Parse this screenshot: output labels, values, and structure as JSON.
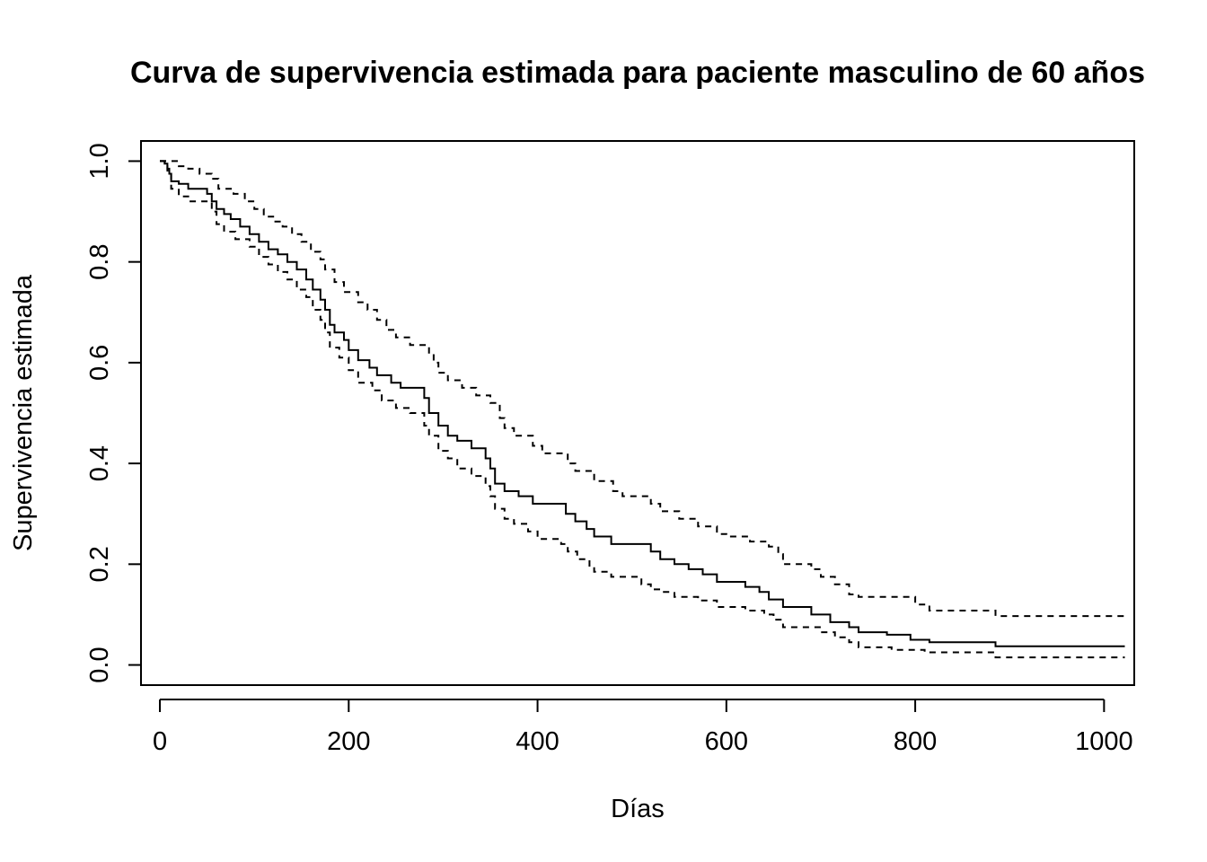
{
  "chart_data": {
    "type": "line",
    "title": "Curva de supervivencia estimada para paciente masculino de 60 años",
    "xlabel": "Días",
    "ylabel": "Supervivencia estimada",
    "xlim": [
      -20,
      1032
    ],
    "ylim": [
      -0.04,
      1.04
    ],
    "x_ticks": [
      0,
      200,
      400,
      600,
      800,
      1000
    ],
    "y_ticks": [
      0.0,
      0.2,
      0.4,
      0.6,
      0.8,
      1.0
    ],
    "x_tick_labels": [
      "0",
      "200",
      "400",
      "600",
      "800",
      "1000"
    ],
    "y_tick_labels": [
      "0.0",
      "0.2",
      "0.4",
      "0.6",
      "0.8",
      "1.0"
    ],
    "grid": false,
    "legend": "none",
    "step": true,
    "series": [
      {
        "style": "solid",
        "color": "#000000",
        "points": [
          [
            0,
            1.0
          ],
          [
            5,
            0.995
          ],
          [
            8,
            0.985
          ],
          [
            10,
            0.975
          ],
          [
            12,
            0.96
          ],
          [
            20,
            0.955
          ],
          [
            30,
            0.945
          ],
          [
            50,
            0.935
          ],
          [
            55,
            0.92
          ],
          [
            60,
            0.905
          ],
          [
            68,
            0.895
          ],
          [
            75,
            0.885
          ],
          [
            85,
            0.87
          ],
          [
            95,
            0.855
          ],
          [
            105,
            0.84
          ],
          [
            115,
            0.825
          ],
          [
            125,
            0.815
          ],
          [
            135,
            0.8
          ],
          [
            145,
            0.785
          ],
          [
            155,
            0.765
          ],
          [
            162,
            0.745
          ],
          [
            170,
            0.725
          ],
          [
            175,
            0.705
          ],
          [
            180,
            0.675
          ],
          [
            185,
            0.66
          ],
          [
            195,
            0.645
          ],
          [
            200,
            0.625
          ],
          [
            210,
            0.605
          ],
          [
            222,
            0.59
          ],
          [
            230,
            0.575
          ],
          [
            245,
            0.56
          ],
          [
            255,
            0.55
          ],
          [
            280,
            0.53
          ],
          [
            285,
            0.5
          ],
          [
            295,
            0.475
          ],
          [
            305,
            0.455
          ],
          [
            315,
            0.445
          ],
          [
            330,
            0.43
          ],
          [
            345,
            0.41
          ],
          [
            350,
            0.39
          ],
          [
            355,
            0.36
          ],
          [
            365,
            0.345
          ],
          [
            380,
            0.335
          ],
          [
            395,
            0.32
          ],
          [
            430,
            0.3
          ],
          [
            440,
            0.285
          ],
          [
            452,
            0.27
          ],
          [
            460,
            0.255
          ],
          [
            478,
            0.24
          ],
          [
            520,
            0.225
          ],
          [
            530,
            0.21
          ],
          [
            545,
            0.2
          ],
          [
            560,
            0.19
          ],
          [
            575,
            0.18
          ],
          [
            590,
            0.165
          ],
          [
            620,
            0.155
          ],
          [
            635,
            0.145
          ],
          [
            645,
            0.13
          ],
          [
            660,
            0.115
          ],
          [
            690,
            0.1
          ],
          [
            710,
            0.085
          ],
          [
            730,
            0.075
          ],
          [
            740,
            0.065
          ],
          [
            770,
            0.06
          ],
          [
            795,
            0.05
          ],
          [
            815,
            0.045
          ],
          [
            885,
            0.037
          ],
          [
            1022,
            0.037
          ]
        ]
      },
      {
        "style": "dashed",
        "color": "#000000",
        "points": [
          [
            0,
            1.0
          ],
          [
            20,
            0.99
          ],
          [
            30,
            0.985
          ],
          [
            42,
            0.975
          ],
          [
            55,
            0.965
          ],
          [
            62,
            0.945
          ],
          [
            78,
            0.935
          ],
          [
            90,
            0.92
          ],
          [
            100,
            0.905
          ],
          [
            110,
            0.89
          ],
          [
            120,
            0.88
          ],
          [
            130,
            0.87
          ],
          [
            140,
            0.855
          ],
          [
            150,
            0.84
          ],
          [
            160,
            0.82
          ],
          [
            170,
            0.805
          ],
          [
            175,
            0.785
          ],
          [
            185,
            0.76
          ],
          [
            195,
            0.74
          ],
          [
            210,
            0.72
          ],
          [
            220,
            0.705
          ],
          [
            230,
            0.685
          ],
          [
            240,
            0.665
          ],
          [
            250,
            0.65
          ],
          [
            265,
            0.635
          ],
          [
            285,
            0.62
          ],
          [
            290,
            0.6
          ],
          [
            295,
            0.58
          ],
          [
            305,
            0.565
          ],
          [
            320,
            0.55
          ],
          [
            335,
            0.535
          ],
          [
            350,
            0.52
          ],
          [
            360,
            0.49
          ],
          [
            365,
            0.47
          ],
          [
            375,
            0.455
          ],
          [
            395,
            0.435
          ],
          [
            405,
            0.42
          ],
          [
            432,
            0.4
          ],
          [
            440,
            0.385
          ],
          [
            460,
            0.365
          ],
          [
            480,
            0.345
          ],
          [
            490,
            0.335
          ],
          [
            520,
            0.32
          ],
          [
            530,
            0.305
          ],
          [
            550,
            0.29
          ],
          [
            570,
            0.275
          ],
          [
            590,
            0.26
          ],
          [
            600,
            0.255
          ],
          [
            625,
            0.245
          ],
          [
            645,
            0.235
          ],
          [
            655,
            0.22
          ],
          [
            660,
            0.2
          ],
          [
            690,
            0.19
          ],
          [
            700,
            0.175
          ],
          [
            715,
            0.16
          ],
          [
            730,
            0.14
          ],
          [
            740,
            0.135
          ],
          [
            800,
            0.12
          ],
          [
            815,
            0.108
          ],
          [
            885,
            0.097
          ],
          [
            1022,
            0.097
          ]
        ]
      },
      {
        "style": "dashed",
        "color": "#000000",
        "points": [
          [
            0,
            1.0
          ],
          [
            8,
            0.975
          ],
          [
            12,
            0.945
          ],
          [
            20,
            0.93
          ],
          [
            30,
            0.92
          ],
          [
            55,
            0.9
          ],
          [
            60,
            0.875
          ],
          [
            68,
            0.86
          ],
          [
            80,
            0.845
          ],
          [
            95,
            0.83
          ],
          [
            105,
            0.81
          ],
          [
            115,
            0.795
          ],
          [
            125,
            0.78
          ],
          [
            135,
            0.765
          ],
          [
            145,
            0.745
          ],
          [
            155,
            0.73
          ],
          [
            162,
            0.705
          ],
          [
            170,
            0.685
          ],
          [
            175,
            0.66
          ],
          [
            180,
            0.63
          ],
          [
            190,
            0.61
          ],
          [
            200,
            0.585
          ],
          [
            210,
            0.56
          ],
          [
            225,
            0.545
          ],
          [
            235,
            0.525
          ],
          [
            250,
            0.51
          ],
          [
            265,
            0.5
          ],
          [
            280,
            0.475
          ],
          [
            285,
            0.455
          ],
          [
            295,
            0.425
          ],
          [
            305,
            0.41
          ],
          [
            315,
            0.39
          ],
          [
            330,
            0.375
          ],
          [
            345,
            0.355
          ],
          [
            350,
            0.335
          ],
          [
            355,
            0.31
          ],
          [
            365,
            0.29
          ],
          [
            375,
            0.28
          ],
          [
            390,
            0.265
          ],
          [
            400,
            0.25
          ],
          [
            425,
            0.24
          ],
          [
            432,
            0.225
          ],
          [
            442,
            0.21
          ],
          [
            455,
            0.195
          ],
          [
            460,
            0.185
          ],
          [
            478,
            0.175
          ],
          [
            510,
            0.16
          ],
          [
            520,
            0.15
          ],
          [
            530,
            0.145
          ],
          [
            545,
            0.135
          ],
          [
            570,
            0.128
          ],
          [
            590,
            0.115
          ],
          [
            620,
            0.108
          ],
          [
            640,
            0.1
          ],
          [
            650,
            0.09
          ],
          [
            660,
            0.075
          ],
          [
            700,
            0.065
          ],
          [
            715,
            0.055
          ],
          [
            730,
            0.045
          ],
          [
            740,
            0.035
          ],
          [
            775,
            0.03
          ],
          [
            810,
            0.025
          ],
          [
            885,
            0.015
          ],
          [
            1022,
            0.015
          ]
        ]
      }
    ]
  }
}
